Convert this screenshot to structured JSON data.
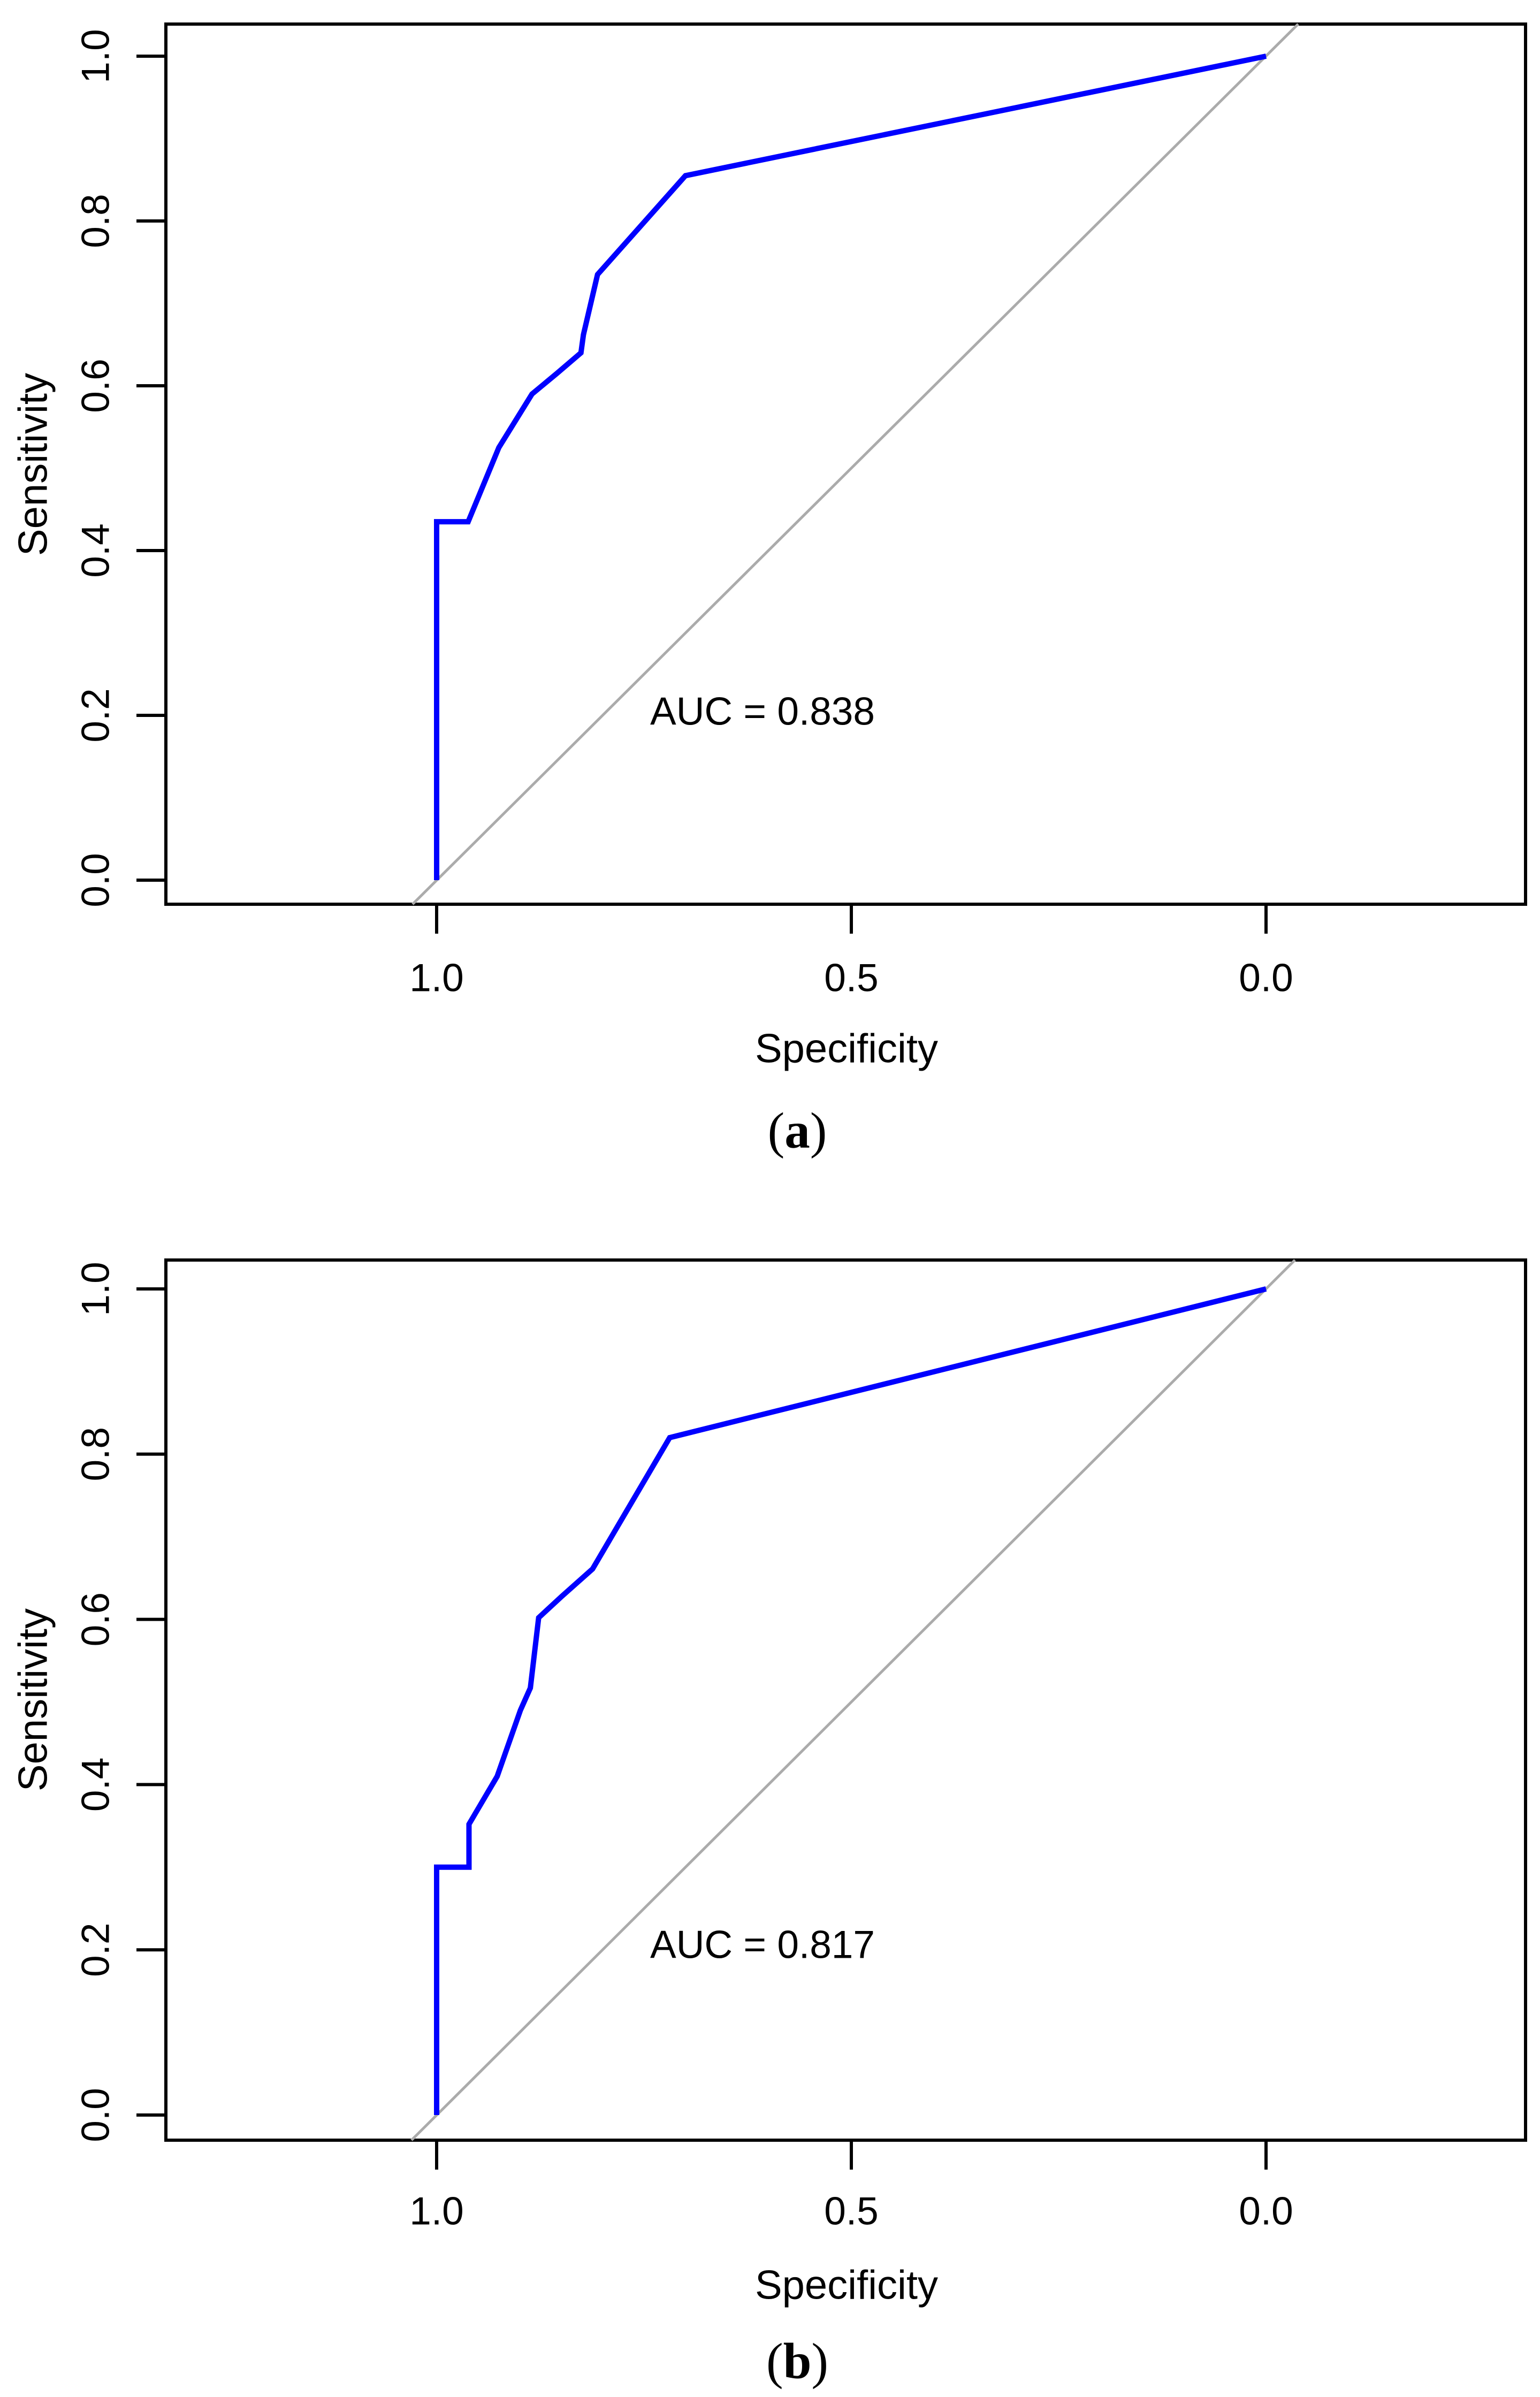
{
  "figure": {
    "background": "#FFFFFF",
    "accent_color": "#0000FF",
    "reference_line_color": "#ABABAB",
    "panels": [
      {
        "id": "a",
        "ylabel": "Sensitivity",
        "xlabel": "Specificity",
        "auc_text": "AUC = 0.838",
        "caption_open": "(",
        "caption_letter": "a",
        "caption_close": ")",
        "x_tick_labels": [
          "1.0",
          "0.5",
          "0.0"
        ],
        "y_tick_labels": [
          "1.0",
          "0.8",
          "0.6",
          "0.4",
          "0.2",
          "0.0"
        ]
      },
      {
        "id": "b",
        "ylabel": "Sensitivity",
        "xlabel": "Specificity",
        "auc_text": "AUC = 0.817",
        "caption_open": "(",
        "caption_letter": "b",
        "caption_close": ")",
        "x_tick_labels": [
          "1.0",
          "0.5",
          "0.0"
        ],
        "y_tick_labels": [
          "1.0",
          "0.8",
          "0.6",
          "0.4",
          "0.2",
          "0.0"
        ]
      }
    ]
  },
  "chart_data": [
    {
      "panel": "a",
      "type": "line",
      "subtype": "roc-curve",
      "xlabel": "Specificity",
      "ylabel": "Sensitivity",
      "x_axis": {
        "ticks": [
          1.0,
          0.5,
          0.0
        ],
        "range": [
          1.0,
          0.0
        ],
        "reversed": true
      },
      "y_axis": {
        "ticks": [
          1.0,
          0.8,
          0.6,
          0.4,
          0.2,
          0.0
        ],
        "range": [
          0.0,
          1.0
        ]
      },
      "grid": false,
      "legend": "none",
      "auc": 0.838,
      "annotations": [
        {
          "text": "AUC = 0.838",
          "spec": 0.61,
          "sens": 0.2
        }
      ],
      "series": [
        {
          "name": "roc-curve",
          "color": "#0000FF",
          "points_spec_sens": [
            [
              1.0,
              0.0
            ],
            [
              1.0,
              0.435
            ],
            [
              0.962,
              0.435
            ],
            [
              0.925,
              0.525
            ],
            [
              0.885,
              0.59
            ],
            [
              0.855,
              0.615
            ],
            [
              0.826,
              0.64
            ],
            [
              0.823,
              0.662
            ],
            [
              0.806,
              0.735
            ],
            [
              0.7,
              0.855
            ],
            [
              0.0,
              1.0
            ]
          ]
        },
        {
          "name": "chance-diagonal",
          "color": "#ABABAB",
          "identity_line": true,
          "points_spec_sens": [
            [
              1.0,
              0.0
            ],
            [
              0.0,
              1.0
            ]
          ]
        }
      ]
    },
    {
      "panel": "b",
      "type": "line",
      "subtype": "roc-curve",
      "xlabel": "Specificity",
      "ylabel": "Sensitivity",
      "x_axis": {
        "ticks": [
          1.0,
          0.5,
          0.0
        ],
        "range": [
          1.0,
          0.0
        ],
        "reversed": true
      },
      "y_axis": {
        "ticks": [
          1.0,
          0.8,
          0.6,
          0.4,
          0.2,
          0.0
        ],
        "range": [
          0.0,
          1.0
        ]
      },
      "grid": false,
      "legend": "none",
      "auc": 0.817,
      "annotations": [
        {
          "text": "AUC = 0.817",
          "spec": 0.61,
          "sens": 0.21
        }
      ],
      "series": [
        {
          "name": "roc-curve",
          "color": "#0000FF",
          "points_spec_sens": [
            [
              1.0,
              0.0
            ],
            [
              1.0,
              0.3
            ],
            [
              0.961,
              0.3
            ],
            [
              0.961,
              0.352
            ],
            [
              0.927,
              0.41
            ],
            [
              0.899,
              0.49
            ],
            [
              0.887,
              0.517
            ],
            [
              0.877,
              0.602
            ],
            [
              0.849,
              0.628
            ],
            [
              0.812,
              0.661
            ],
            [
              0.719,
              0.82
            ],
            [
              0.0,
              1.0
            ]
          ]
        },
        {
          "name": "chance-diagonal",
          "color": "#ABABAB",
          "identity_line": true,
          "points_spec_sens": [
            [
              1.0,
              0.0
            ],
            [
              0.0,
              1.0
            ]
          ]
        }
      ]
    }
  ]
}
